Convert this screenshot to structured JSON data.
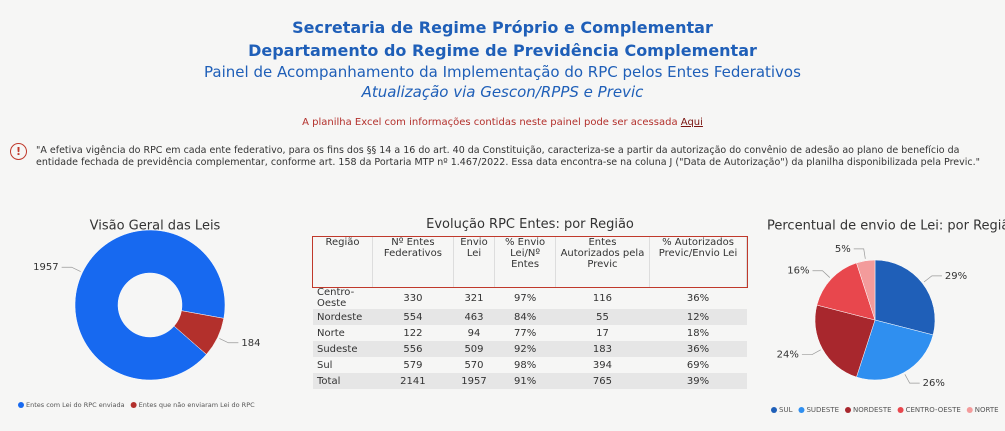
{
  "header": {
    "line1": "Secretaria de Regime Próprio e Complementar",
    "line2": "Departamento do Regime de Previdência Complementar",
    "line3": "Painel de Acompanhamento da Implementação do RPC pelos Entes Federativos",
    "line4": "Atualização via Gescon/RPPS e Previc",
    "excel_text": "A planilha Excel com informações contidas neste painel pode ser acessada",
    "excel_link": "Aqui"
  },
  "notice": {
    "icon": "!",
    "text": "\"A efetiva vigência do RPC em cada ente federativo, para os fins dos §§ 14 a 16 do art. 40 da Constituição, caracteriza-se a partir da autorização do convênio de adesão ao plano de benefício da entidade fechada de previdência complementar, conforme art. 158 da Portaria MTP nº 1.467/2022. Essa data encontra-se na coluna J (\"Data de Autorização\") da planilha disponibilizada pela Previc.\""
  },
  "chart_data": [
    {
      "type": "donut",
      "title": "Visão Geral das Leis",
      "categories": [
        "Entes com Lei do RPC enviada",
        "Entes que não enviaram Lei do RPC"
      ],
      "values": [
        1957,
        184
      ],
      "colors": [
        "#1769f0",
        "#b3302c"
      ]
    },
    {
      "type": "pie",
      "title": "Percentual de envio de Lei: por Região",
      "categories": [
        "SUL",
        "SUDESTE",
        "NORDESTE",
        "CENTRO-OESTE",
        "NORTE"
      ],
      "values": [
        29,
        26,
        24,
        16,
        5
      ],
      "value_labels": [
        "29%",
        "26%",
        "24%",
        "16%",
        "5%"
      ],
      "colors": [
        "#1f5fb8",
        "#2f8ff0",
        "#a8272d",
        "#e8474d",
        "#f39b9b"
      ]
    }
  ],
  "table": {
    "title": "Evolução RPC Entes: por Região",
    "columns": [
      "Região",
      "Nº Entes Federativos",
      "Envio Lei",
      "% Envio Lei/Nº Entes",
      "Entes Autorizados pela Previc",
      "% Autorizados Previc/Envio Lei"
    ],
    "rows": [
      [
        "Centro-Oeste",
        "330",
        "321",
        "97%",
        "116",
        "36%"
      ],
      [
        "Nordeste",
        "554",
        "463",
        "84%",
        "55",
        "12%"
      ],
      [
        "Norte",
        "122",
        "94",
        "77%",
        "17",
        "18%"
      ],
      [
        "Sudeste",
        "556",
        "509",
        "92%",
        "183",
        "36%"
      ],
      [
        "Sul",
        "579",
        "570",
        "98%",
        "394",
        "69%"
      ],
      [
        "Total",
        "2141",
        "1957",
        "91%",
        "765",
        "39%"
      ]
    ]
  }
}
